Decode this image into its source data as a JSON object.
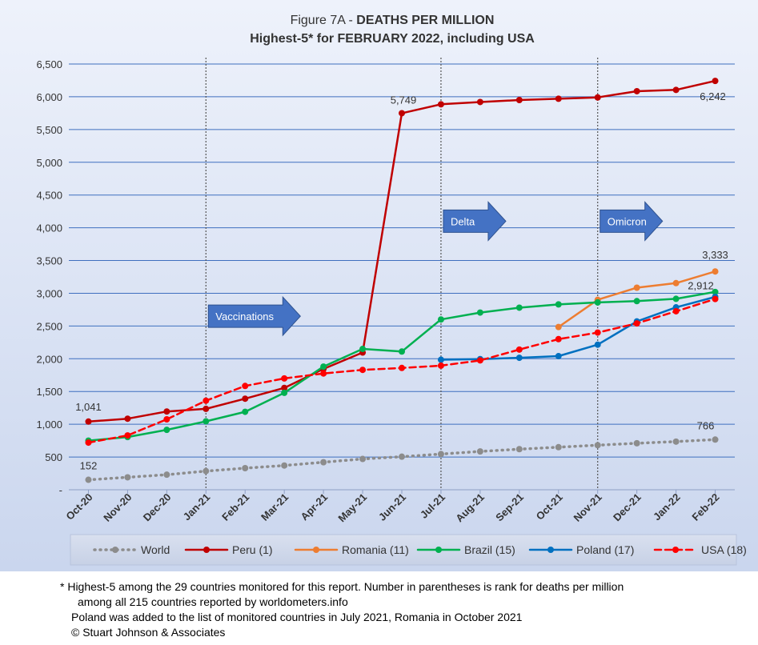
{
  "chart_data": {
    "type": "line",
    "title_prefix": "Figure 7A - ",
    "title_bold": "DEATHS PER MILLION",
    "subtitle": "Highest-5* for FEBRUARY 2022, including USA",
    "categories": [
      "Oct-20",
      "Nov-20",
      "Dec-20",
      "Jan-21",
      "Feb-21",
      "Mar-21",
      "Apr-21",
      "May-21",
      "Jun-21",
      "Jul-21",
      "Aug-21",
      "Sep-21",
      "Oct-21",
      "Nov-21",
      "Dec-21",
      "Jan-22",
      "Feb-22"
    ],
    "y_ticks": [
      {
        "value": 0,
        "label": "-"
      },
      {
        "value": 500,
        "label": "500"
      },
      {
        "value": 1000,
        "label": "1,000"
      },
      {
        "value": 1500,
        "label": "1,500"
      },
      {
        "value": 2000,
        "label": "2,000"
      },
      {
        "value": 2500,
        "label": "2,500"
      },
      {
        "value": 3000,
        "label": "3,000"
      },
      {
        "value": 3500,
        "label": "3,500"
      },
      {
        "value": 4000,
        "label": "4,000"
      },
      {
        "value": 4500,
        "label": "4,500"
      },
      {
        "value": 5000,
        "label": "5,000"
      },
      {
        "value": 5500,
        "label": "5,500"
      },
      {
        "value": 6000,
        "label": "6,000"
      },
      {
        "value": 6500,
        "label": "6,500"
      }
    ],
    "ylim": [
      0,
      6500
    ],
    "grid": true,
    "legend_position": "bottom",
    "series": [
      {
        "name": "World",
        "color": "#8c8c8c",
        "style": "dotted",
        "values": [
          152,
          190,
          230,
          285,
          330,
          370,
          420,
          470,
          505,
          545,
          585,
          620,
          650,
          680,
          710,
          735,
          766
        ]
      },
      {
        "name": "Peru (1)",
        "color": "#c00000",
        "style": "solid",
        "values": [
          1041,
          1085,
          1195,
          1235,
          1390,
          1555,
          1845,
          2095,
          5749,
          5885,
          5920,
          5950,
          5970,
          5990,
          6085,
          6105,
          6242
        ]
      },
      {
        "name": "Romania (11)",
        "color": "#ed7d31",
        "style": "solid",
        "values": [
          null,
          null,
          null,
          null,
          null,
          null,
          null,
          null,
          null,
          null,
          null,
          null,
          2485,
          2900,
          3085,
          3155,
          3333
        ]
      },
      {
        "name": "Brazil (15)",
        "color": "#00b050",
        "style": "solid",
        "values": [
          750,
          805,
          915,
          1045,
          1190,
          1480,
          1880,
          2150,
          2110,
          2600,
          2705,
          2780,
          2830,
          2860,
          2880,
          2915,
          3020
        ]
      },
      {
        "name": "Poland (17)",
        "color": "#0070c0",
        "style": "solid",
        "values": [
          null,
          null,
          null,
          null,
          null,
          null,
          null,
          null,
          null,
          1985,
          1995,
          2015,
          2040,
          2215,
          2570,
          2785,
          2945
        ]
      },
      {
        "name": "USA (18)",
        "color": "#ff0000",
        "style": "dashed",
        "values": [
          720,
          830,
          1075,
          1360,
          1585,
          1700,
          1775,
          1830,
          1860,
          1895,
          1975,
          2140,
          2300,
          2400,
          2540,
          2725,
          2912
        ]
      }
    ],
    "data_labels": [
      {
        "series": "Peru (1)",
        "category": "Oct-20",
        "text": "1,041"
      },
      {
        "series": "Peru (1)",
        "category": "Jun-21",
        "text": "5,749"
      },
      {
        "series": "Peru (1)",
        "category": "Feb-22",
        "text": "6,242"
      },
      {
        "series": "Romania (11)",
        "category": "Feb-22",
        "text": "3,333"
      },
      {
        "series": "USA (18)",
        "category": "Feb-22",
        "text": "2,912"
      },
      {
        "series": "World",
        "category": "Oct-20",
        "text": "152"
      },
      {
        "series": "World",
        "category": "Feb-22",
        "text": "766"
      }
    ],
    "vertical_markers": [
      "Jan-21",
      "Jul-21",
      "Nov-21"
    ],
    "annotations": [
      {
        "text": "Vaccinations",
        "category": "Jan-21",
        "value": 2650
      },
      {
        "text": "Delta",
        "category": "Jul-21",
        "value": 4100
      },
      {
        "text": "Omicron",
        "category": "Nov-21",
        "value": 4100
      }
    ],
    "arrow_color": "#4472c4"
  },
  "footnote": {
    "line1": "* Highest-5 among the 29 countries monitored for this report. Number in parentheses is rank for deaths per million",
    "line2": "among all 215 countries reported by worldometers.info",
    "line3": "Poland was added to the list of monitored countries in July 2021, Romania in October 2021",
    "line4": "© Stuart Johnson & Associates"
  }
}
